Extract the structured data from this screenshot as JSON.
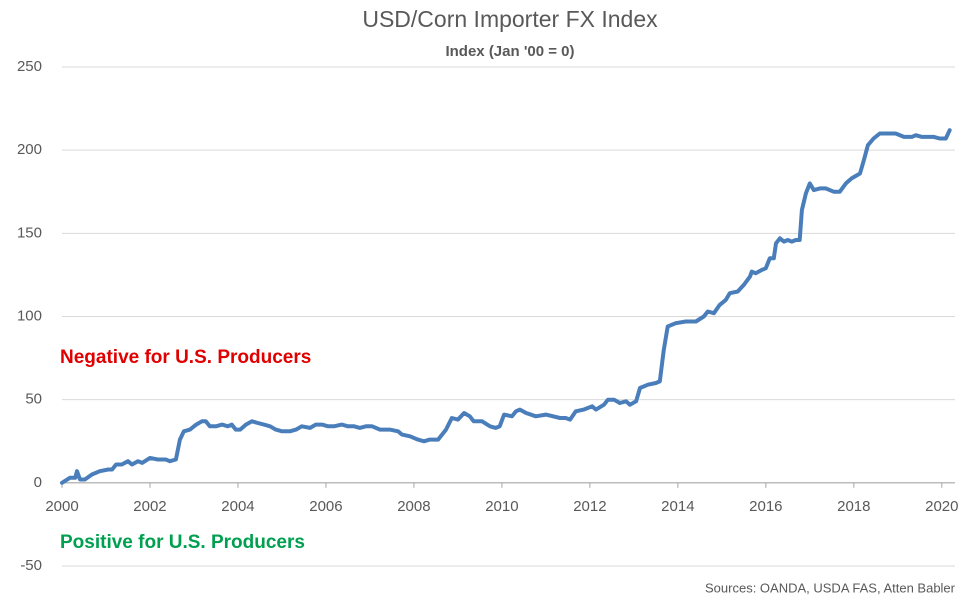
{
  "chart_data": {
    "type": "line",
    "title": "USD/Corn Importer FX Index",
    "subtitle": "Index (Jan '00 = 0)",
    "source": "Sources: OANDA, USDA FAS, Atten Babler",
    "annotations": [
      {
        "text": "Negative for U.S. Producers",
        "color": "#e00000"
      },
      {
        "text": "Positive for U.S. Producers",
        "color": "#00a050"
      }
    ],
    "color": "#4a7ebb",
    "grid": true,
    "xlim": [
      2000,
      2020.3
    ],
    "xticks": [
      2000,
      2002,
      2004,
      2006,
      2008,
      2010,
      2012,
      2014,
      2016,
      2018,
      2020
    ],
    "ylim": [
      -50,
      250
    ],
    "yticks": [
      -50,
      0,
      50,
      100,
      150,
      200,
      250
    ],
    "x": [
      2000.0,
      2000.18,
      2000.3,
      2000.34,
      2000.41,
      2000.52,
      2000.68,
      2000.86,
      2001.05,
      2001.14,
      2001.23,
      2001.36,
      2001.5,
      2001.59,
      2001.73,
      2001.82,
      2002.0,
      2002.18,
      2002.36,
      2002.45,
      2002.59,
      2002.68,
      2002.77,
      2002.91,
      2003.05,
      2003.18,
      2003.27,
      2003.36,
      2003.5,
      2003.64,
      2003.77,
      2003.86,
      2003.95,
      2004.05,
      2004.18,
      2004.32,
      2004.45,
      2004.59,
      2004.73,
      2004.86,
      2005.0,
      2005.18,
      2005.32,
      2005.45,
      2005.64,
      2005.77,
      2005.91,
      2006.05,
      2006.18,
      2006.36,
      2006.5,
      2006.64,
      2006.77,
      2006.91,
      2007.05,
      2007.23,
      2007.45,
      2007.64,
      2007.73,
      2007.91,
      2008.09,
      2008.23,
      2008.36,
      2008.55,
      2008.73,
      2008.86,
      2009.0,
      2009.14,
      2009.27,
      2009.36,
      2009.55,
      2009.73,
      2009.86,
      2009.95,
      2010.05,
      2010.23,
      2010.32,
      2010.41,
      2010.55,
      2010.77,
      2011.0,
      2011.32,
      2011.45,
      2011.55,
      2011.68,
      2011.86,
      2012.05,
      2012.14,
      2012.32,
      2012.41,
      2012.55,
      2012.68,
      2012.82,
      2012.91,
      2013.05,
      2013.14,
      2013.32,
      2013.5,
      2013.59,
      2013.68,
      2013.77,
      2013.95,
      2014.18,
      2014.41,
      2014.59,
      2014.68,
      2014.82,
      2014.95,
      2015.09,
      2015.18,
      2015.36,
      2015.5,
      2015.64,
      2015.68,
      2015.77,
      2015.91,
      2016.0,
      2016.09,
      2016.18,
      2016.23,
      2016.32,
      2016.41,
      2016.5,
      2016.59,
      2016.68,
      2016.77,
      2016.82,
      2016.91,
      2017.0,
      2017.09,
      2017.23,
      2017.36,
      2017.55,
      2017.68,
      2017.82,
      2017.95,
      2018.14,
      2018.23,
      2018.32,
      2018.45,
      2018.59,
      2018.82,
      2018.95,
      2019.14,
      2019.32,
      2019.41,
      2019.55,
      2019.64,
      2019.82,
      2019.95,
      2020.09,
      2020.18
    ],
    "values": [
      0,
      3,
      3,
      7,
      2,
      2,
      5,
      7,
      8,
      8,
      11,
      11,
      13,
      11,
      13,
      12,
      15,
      14,
      14,
      13,
      14,
      26,
      31,
      32,
      35,
      37,
      37,
      34,
      34,
      35,
      34,
      35,
      32,
      32,
      35,
      37,
      36,
      35,
      34,
      32,
      31,
      31,
      32,
      34,
      33,
      35,
      35,
      34,
      34,
      35,
      34,
      34,
      33,
      34,
      34,
      32,
      32,
      31,
      29,
      28,
      26,
      25,
      26,
      26,
      32,
      39,
      38,
      42,
      40,
      37,
      37,
      34,
      33,
      34,
      41,
      40,
      43,
      44,
      42,
      40,
      41,
      39,
      39,
      38,
      43,
      44,
      46,
      44,
      47,
      50,
      50,
      48,
      49,
      47,
      49,
      57,
      59,
      60,
      61,
      80,
      94,
      96,
      97,
      97,
      100,
      103,
      102,
      107,
      110,
      114,
      115,
      119,
      124,
      127,
      126,
      128,
      129,
      135,
      135,
      144,
      147,
      145,
      146,
      145,
      146,
      146,
      164,
      174,
      180,
      176,
      177,
      177,
      175,
      175,
      180,
      183,
      186,
      194,
      203,
      207,
      210,
      210,
      210,
      208,
      208,
      209,
      208,
      208,
      208,
      207,
      207,
      212
    ]
  }
}
